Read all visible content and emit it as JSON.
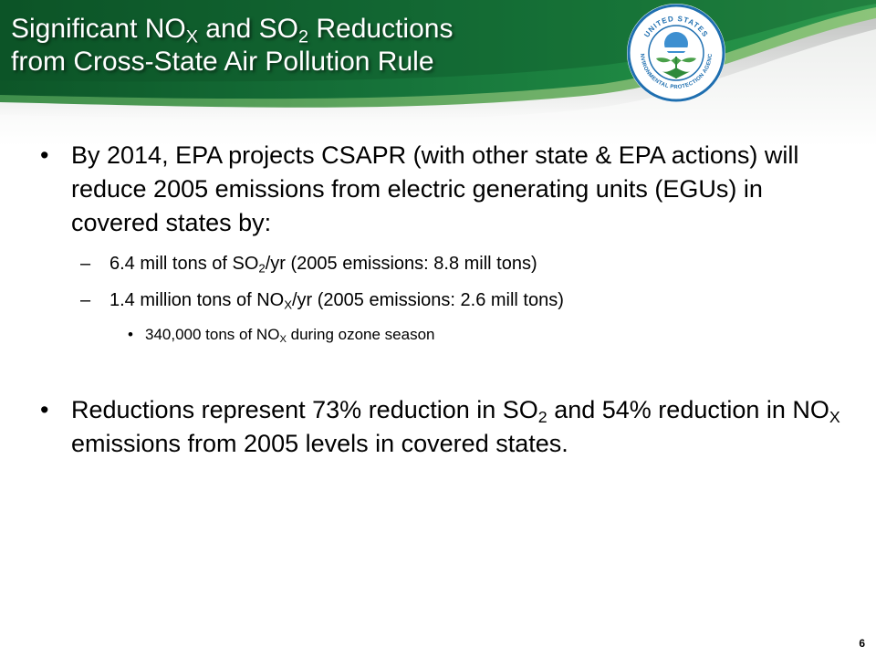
{
  "slide": {
    "title": {
      "line1": {
        "a": "Significant NO",
        "sub1": "X",
        "b": " and SO",
        "sub2": "2",
        "c": " Reductions"
      },
      "line2": "from Cross-State Air Pollution Rule"
    },
    "logo": {
      "icon": "epa-seal-icon",
      "top_text": "UNITED STATES",
      "bottom_text": "ENVIRONMENTAL PROTECTION AGENCY"
    },
    "bullets": {
      "b1": {
        "text": "By 2014, EPA projects CSAPR (with other state & EPA actions) will reduce 2005 emissions from electric generating units (EGUs) in covered states by:",
        "sub1": {
          "a": "6.4 mill tons of SO",
          "sub": "2",
          "b": "/yr (2005 emissions: 8.8 mill tons)"
        },
        "sub2": {
          "a": "1.4 million tons of NO",
          "sub": "X",
          "b": "/yr (2005 emissions: 2.6 mill tons)",
          "sub1": {
            "a": "340,000 tons of NO",
            "sub": "X",
            "b": " during ozone season"
          }
        }
      },
      "b2": {
        "a": "Reductions represent 73% reduction in SO",
        "sub1": "2",
        "b": " and 54% reduction in NO",
        "sub2": "X",
        "c": " emissions from 2005 levels in covered states."
      }
    },
    "page_number": "6"
  },
  "colors": {
    "header_green_dark": "#0e5a2c",
    "header_green": "#1c7d3c",
    "header_green_light": "#5aa85a",
    "seal_blue": "#1f6fb0"
  }
}
